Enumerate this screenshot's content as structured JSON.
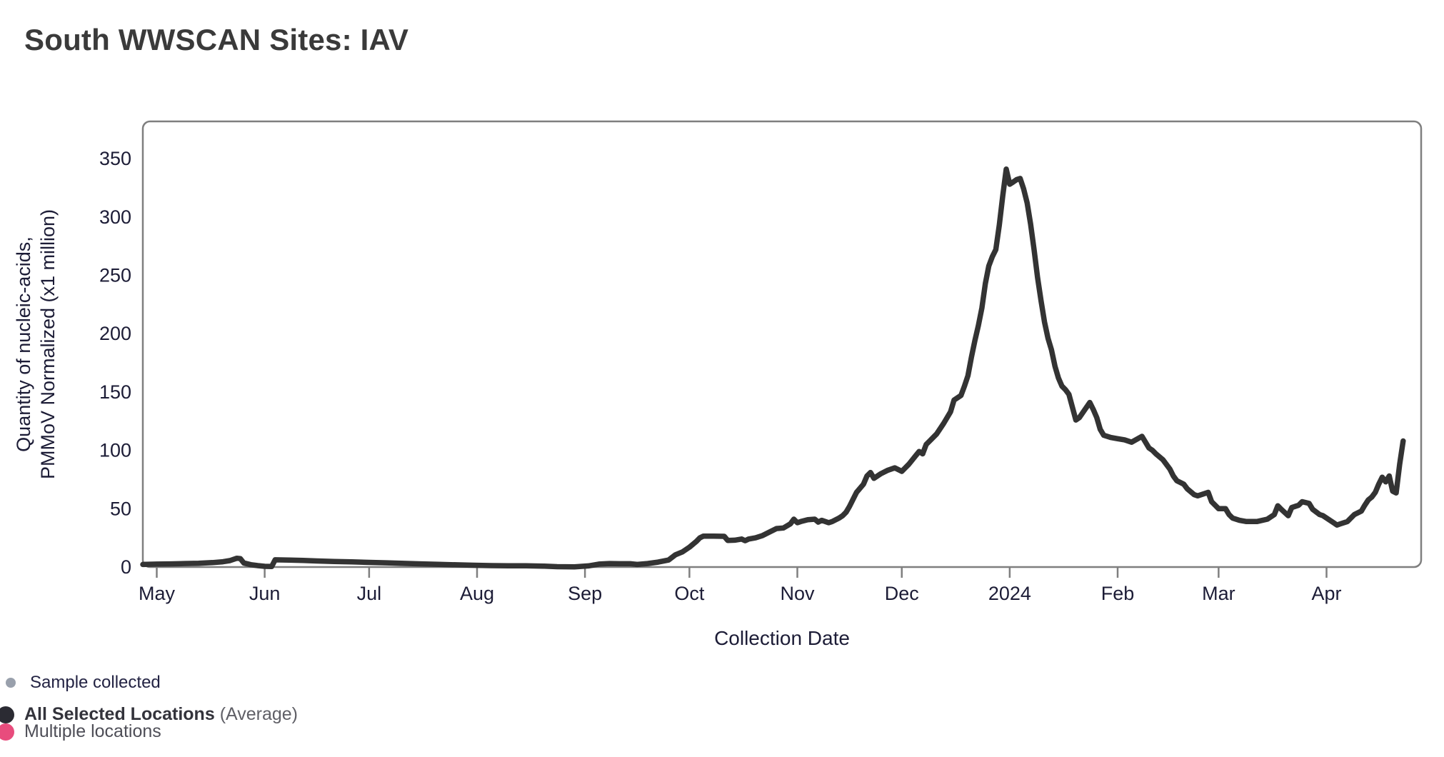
{
  "header": {
    "title": "South WWSCAN Sites: IAV"
  },
  "legend": {
    "sample_collected": {
      "label": "Sample collected",
      "dot_color": "#99a0ac"
    },
    "all_selected": {
      "label": "All Selected Locations",
      "suffix": " (Average)",
      "dot_color": "#2b2b33"
    },
    "multiple_locations": {
      "label": "Multiple locations",
      "dot_color": "#e84c7d"
    }
  },
  "chart_data": {
    "type": "line",
    "title": "South WWSCAN Sites: IAV",
    "xlabel": "Collection Date",
    "ylabel_line1": "Quantity of nucleic-acids,",
    "ylabel_line2": "PMMoV Normalized (x1 million)",
    "ylim": [
      0,
      382
    ],
    "yticks": [
      0,
      50,
      100,
      150,
      200,
      250,
      300,
      350
    ],
    "x_domain": [
      "2023-04-27",
      "2024-04-26"
    ],
    "grid": false,
    "legend_position": "bottom-left",
    "line_color": "#333333",
    "axis_color": "#7f7f7f",
    "tick_label_color": "#1c1c36",
    "xticks": [
      {
        "label": "May",
        "date": "2023-05-01"
      },
      {
        "label": "Jun",
        "date": "2023-06-01"
      },
      {
        "label": "Jul",
        "date": "2023-07-01"
      },
      {
        "label": "Aug",
        "date": "2023-08-01"
      },
      {
        "label": "Sep",
        "date": "2023-09-01"
      },
      {
        "label": "Oct",
        "date": "2023-10-01"
      },
      {
        "label": "Nov",
        "date": "2023-11-01"
      },
      {
        "label": "Dec",
        "date": "2023-12-01"
      },
      {
        "label": "2024",
        "date": "2024-01-01"
      },
      {
        "label": "Feb",
        "date": "2024-02-01"
      },
      {
        "label": "Mar",
        "date": "2024-03-01"
      },
      {
        "label": "Apr",
        "date": "2024-04-01"
      }
    ],
    "series": [
      {
        "name": "All Selected Locations (Average)",
        "color": "#333333",
        "points": [
          [
            "2023-04-27",
            2.2
          ],
          [
            "2023-05-01",
            2.5
          ],
          [
            "2023-05-05",
            2.7
          ],
          [
            "2023-05-09",
            3
          ],
          [
            "2023-05-13",
            3.2
          ],
          [
            "2023-05-17",
            3.8
          ],
          [
            "2023-05-20",
            4.5
          ],
          [
            "2023-05-22",
            5.5
          ],
          [
            "2023-05-24",
            7.5
          ],
          [
            "2023-05-25",
            7.2
          ],
          [
            "2023-05-26",
            3.5
          ],
          [
            "2023-05-28",
            2
          ],
          [
            "2023-05-30",
            1.2
          ],
          [
            "2023-06-01",
            0.6
          ],
          [
            "2023-06-03",
            0.5
          ],
          [
            "2023-06-04",
            6.2
          ],
          [
            "2023-06-08",
            6
          ],
          [
            "2023-06-12",
            5.6
          ],
          [
            "2023-06-16",
            5.2
          ],
          [
            "2023-06-21",
            4.8
          ],
          [
            "2023-06-26",
            4.4
          ],
          [
            "2023-07-01",
            4
          ],
          [
            "2023-07-06",
            3.6
          ],
          [
            "2023-07-11",
            3.1
          ],
          [
            "2023-07-16",
            2.7
          ],
          [
            "2023-07-21",
            2.3
          ],
          [
            "2023-07-26",
            1.9
          ],
          [
            "2023-07-31",
            1.5
          ],
          [
            "2023-08-05",
            1.2
          ],
          [
            "2023-08-10",
            1.1
          ],
          [
            "2023-08-15",
            1.1
          ],
          [
            "2023-08-20",
            0.8
          ],
          [
            "2023-08-24",
            0.3
          ],
          [
            "2023-08-29",
            0.2
          ],
          [
            "2023-09-02",
            1
          ],
          [
            "2023-09-05",
            2.5
          ],
          [
            "2023-09-08",
            3
          ],
          [
            "2023-09-11",
            2.8
          ],
          [
            "2023-09-14",
            2.8
          ],
          [
            "2023-09-16",
            2.2
          ],
          [
            "2023-09-19",
            3
          ],
          [
            "2023-09-22",
            4.2
          ],
          [
            "2023-09-25",
            6
          ],
          [
            "2023-09-27",
            10.5
          ],
          [
            "2023-09-29",
            13
          ],
          [
            "2023-10-01",
            17
          ],
          [
            "2023-10-03",
            22
          ],
          [
            "2023-10-04",
            25
          ],
          [
            "2023-10-05",
            26.5
          ],
          [
            "2023-10-08",
            26.5
          ],
          [
            "2023-10-11",
            26.3
          ],
          [
            "2023-10-12",
            22.8
          ],
          [
            "2023-10-14",
            23
          ],
          [
            "2023-10-16",
            24
          ],
          [
            "2023-10-17",
            22.6
          ],
          [
            "2023-10-18",
            24
          ],
          [
            "2023-10-20",
            25
          ],
          [
            "2023-10-22",
            27
          ],
          [
            "2023-10-24",
            30
          ],
          [
            "2023-10-26",
            33
          ],
          [
            "2023-10-28",
            33.5
          ],
          [
            "2023-10-30",
            37
          ],
          [
            "2023-10-31",
            41
          ],
          [
            "2023-11-01",
            38
          ],
          [
            "2023-11-02",
            39
          ],
          [
            "2023-11-04",
            40.5
          ],
          [
            "2023-11-06",
            41
          ],
          [
            "2023-11-07",
            38.5
          ],
          [
            "2023-11-08",
            40
          ],
          [
            "2023-11-10",
            38
          ],
          [
            "2023-11-11",
            39
          ],
          [
            "2023-11-13",
            42
          ],
          [
            "2023-11-14",
            44
          ],
          [
            "2023-11-15",
            47
          ],
          [
            "2023-11-16",
            52
          ],
          [
            "2023-11-17",
            58
          ],
          [
            "2023-11-18",
            64
          ],
          [
            "2023-11-20",
            71
          ],
          [
            "2023-11-21",
            78
          ],
          [
            "2023-11-22",
            81
          ],
          [
            "2023-11-23",
            76
          ],
          [
            "2023-11-25",
            80
          ],
          [
            "2023-11-27",
            83
          ],
          [
            "2023-11-29",
            85
          ],
          [
            "2023-12-01",
            82
          ],
          [
            "2023-12-03",
            88
          ],
          [
            "2023-12-05",
            95.5
          ],
          [
            "2023-12-06",
            99
          ],
          [
            "2023-12-07",
            97
          ],
          [
            "2023-12-08",
            105
          ],
          [
            "2023-12-09",
            108
          ],
          [
            "2023-12-11",
            114
          ],
          [
            "2023-12-13",
            123
          ],
          [
            "2023-12-15",
            133
          ],
          [
            "2023-12-16",
            143
          ],
          [
            "2023-12-18",
            147
          ],
          [
            "2023-12-19",
            155
          ],
          [
            "2023-12-20",
            164
          ],
          [
            "2023-12-21",
            180
          ],
          [
            "2023-12-22",
            194
          ],
          [
            "2023-12-23",
            207
          ],
          [
            "2023-12-24",
            222
          ],
          [
            "2023-12-25",
            243
          ],
          [
            "2023-12-26",
            258
          ],
          [
            "2023-12-27",
            266
          ],
          [
            "2023-12-28",
            272
          ],
          [
            "2023-12-29",
            293
          ],
          [
            "2023-12-30",
            318
          ],
          [
            "2023-12-31",
            341
          ],
          [
            "2024-01-01",
            328
          ],
          [
            "2024-01-02",
            330
          ],
          [
            "2024-01-03",
            332
          ],
          [
            "2024-01-04",
            333
          ],
          [
            "2024-01-05",
            324
          ],
          [
            "2024-01-06",
            312
          ],
          [
            "2024-01-07",
            294
          ],
          [
            "2024-01-08",
            272
          ],
          [
            "2024-01-09",
            248
          ],
          [
            "2024-01-10",
            228
          ],
          [
            "2024-01-11",
            210
          ],
          [
            "2024-01-12",
            196
          ],
          [
            "2024-01-13",
            186
          ],
          [
            "2024-01-14",
            172
          ],
          [
            "2024-01-15",
            162
          ],
          [
            "2024-01-16",
            155
          ],
          [
            "2024-01-17",
            152
          ],
          [
            "2024-01-18",
            148
          ],
          [
            "2024-01-20",
            126
          ],
          [
            "2024-01-21",
            128
          ],
          [
            "2024-01-24",
            141
          ],
          [
            "2024-01-25",
            135
          ],
          [
            "2024-01-26",
            128
          ],
          [
            "2024-01-27",
            118
          ],
          [
            "2024-01-28",
            113
          ],
          [
            "2024-01-30",
            111
          ],
          [
            "2024-02-01",
            110
          ],
          [
            "2024-02-03",
            109
          ],
          [
            "2024-02-05",
            107
          ],
          [
            "2024-02-08",
            112
          ],
          [
            "2024-02-10",
            102
          ],
          [
            "2024-02-11",
            100
          ],
          [
            "2024-02-12",
            97
          ],
          [
            "2024-02-14",
            92
          ],
          [
            "2024-02-16",
            84
          ],
          [
            "2024-02-17",
            78
          ],
          [
            "2024-02-18",
            74
          ],
          [
            "2024-02-20",
            71
          ],
          [
            "2024-02-21",
            67
          ],
          [
            "2024-02-23",
            62
          ],
          [
            "2024-02-24",
            61
          ],
          [
            "2024-02-27",
            64
          ],
          [
            "2024-02-28",
            56
          ],
          [
            "2024-02-29",
            53
          ],
          [
            "2024-03-01",
            50
          ],
          [
            "2024-03-03",
            50
          ],
          [
            "2024-03-04",
            45
          ],
          [
            "2024-03-05",
            42
          ],
          [
            "2024-03-07",
            40
          ],
          [
            "2024-03-09",
            39
          ],
          [
            "2024-03-12",
            39
          ],
          [
            "2024-03-15",
            41
          ],
          [
            "2024-03-17",
            45
          ],
          [
            "2024-03-18",
            52.5
          ],
          [
            "2024-03-19",
            49.5
          ],
          [
            "2024-03-21",
            44
          ],
          [
            "2024-03-22",
            51
          ],
          [
            "2024-03-24",
            53
          ],
          [
            "2024-03-25",
            56
          ],
          [
            "2024-03-27",
            54.5
          ],
          [
            "2024-03-28",
            49.5
          ],
          [
            "2024-03-30",
            45
          ],
          [
            "2024-03-31",
            44
          ],
          [
            "2024-04-01",
            42
          ],
          [
            "2024-04-03",
            38
          ],
          [
            "2024-04-04",
            36
          ],
          [
            "2024-04-05",
            37
          ],
          [
            "2024-04-07",
            39
          ],
          [
            "2024-04-08",
            42
          ],
          [
            "2024-04-09",
            45
          ],
          [
            "2024-04-11",
            48
          ],
          [
            "2024-04-12",
            53
          ],
          [
            "2024-04-13",
            57.5
          ],
          [
            "2024-04-14",
            60
          ],
          [
            "2024-04-15",
            64
          ],
          [
            "2024-04-16",
            71
          ],
          [
            "2024-04-17",
            77
          ],
          [
            "2024-04-18",
            73
          ],
          [
            "2024-04-19",
            78
          ],
          [
            "2024-04-20",
            65
          ],
          [
            "2024-04-21",
            63.5
          ],
          [
            "2024-04-22",
            88
          ],
          [
            "2024-04-23",
            108
          ]
        ]
      }
    ]
  }
}
